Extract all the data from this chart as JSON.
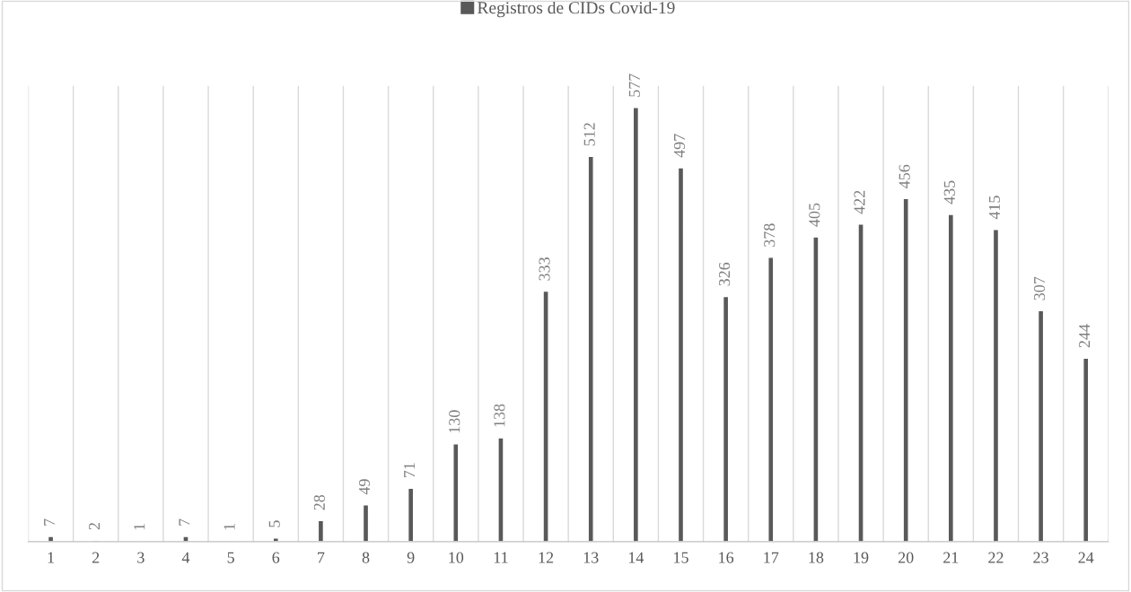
{
  "chart_data": {
    "type": "bar",
    "categories": [
      "1",
      "2",
      "3",
      "4",
      "5",
      "6",
      "7",
      "8",
      "9",
      "10",
      "11",
      "12",
      "13",
      "14",
      "15",
      "16",
      "17",
      "18",
      "19",
      "20",
      "21",
      "22",
      "23",
      "24"
    ],
    "series": [
      {
        "name": "Registros de CIDs Covid-19",
        "color": "#595959",
        "values": [
          7,
          2,
          1,
          7,
          1,
          5,
          28,
          49,
          71,
          130,
          138,
          333,
          512,
          577,
          497,
          326,
          378,
          405,
          422,
          456,
          435,
          415,
          307,
          244
        ]
      }
    ],
    "data_labels": true,
    "grid": "x",
    "legend": "top",
    "tick_labels": "x"
  }
}
